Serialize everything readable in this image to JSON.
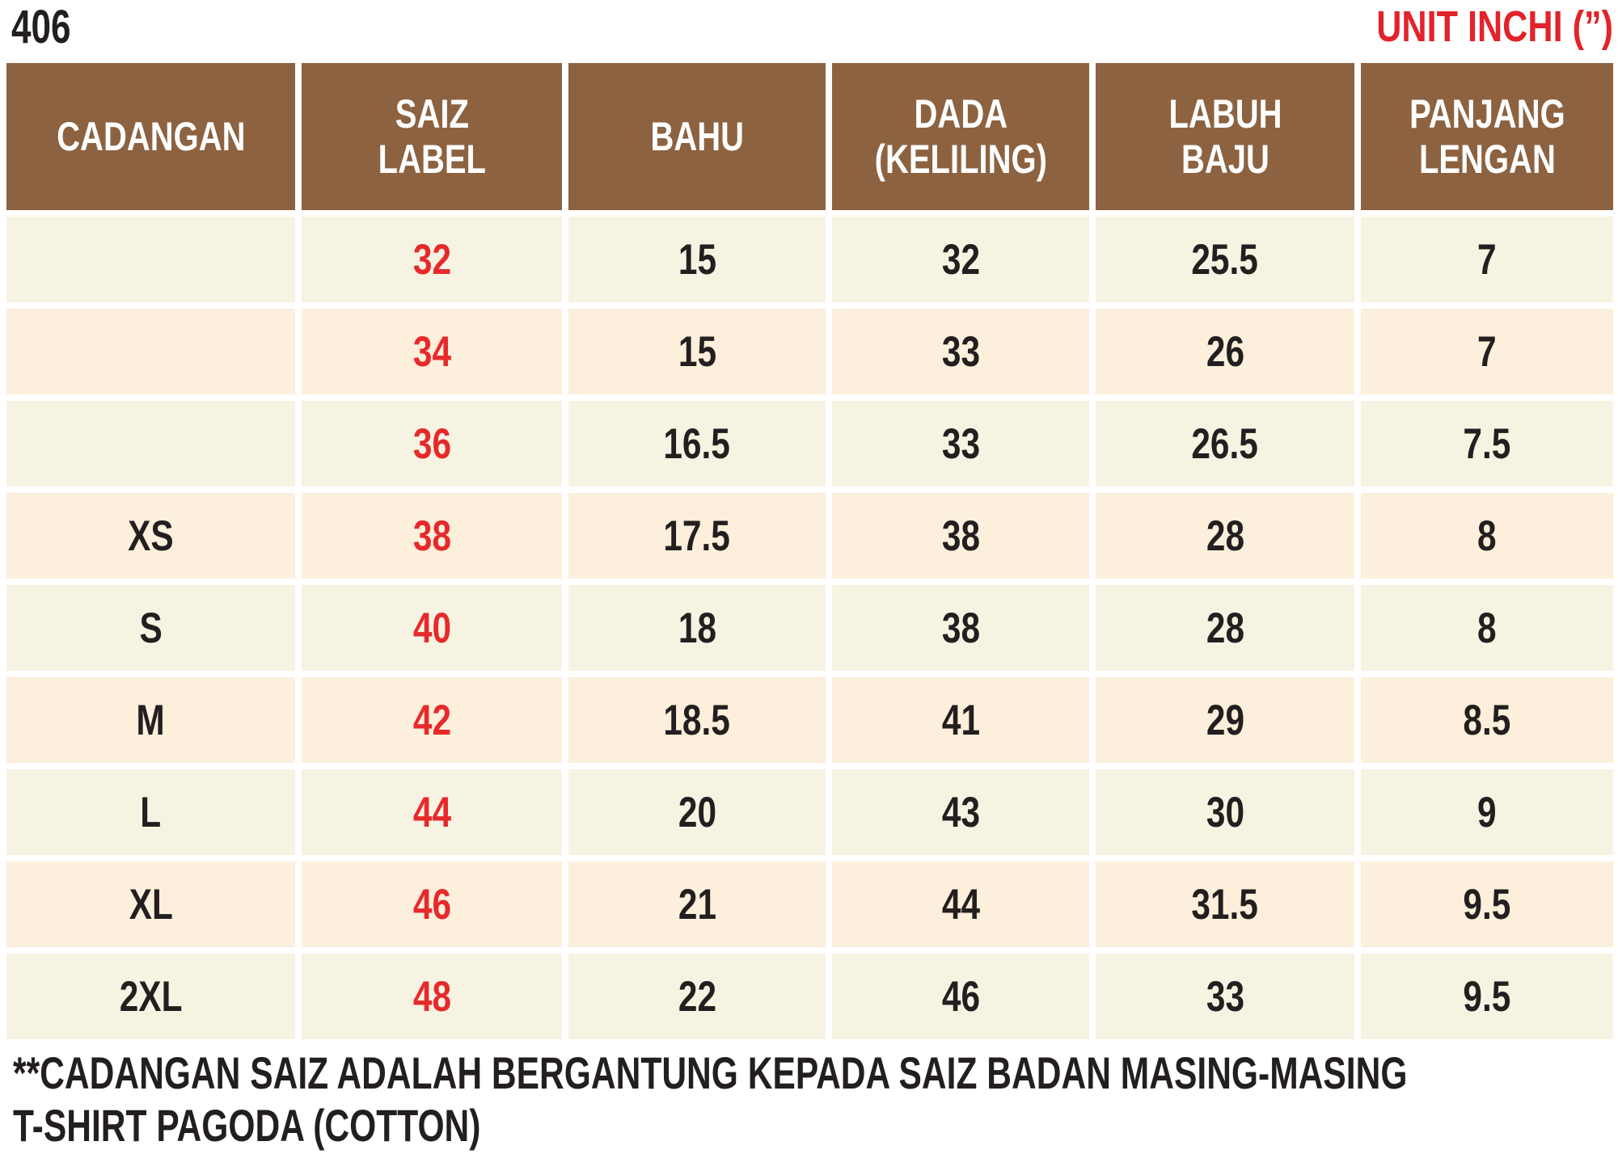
{
  "header": {
    "code": "406",
    "unit_label": "UNIT INCHI (”)"
  },
  "table": {
    "columns": [
      "CADANGAN",
      "SAIZ\nLABEL",
      "BAHU",
      "DADA\n(KELILING)",
      "LABUH\nBAJU",
      "PANJANG\nLENGAN"
    ],
    "rows": [
      [
        "",
        "32",
        "15",
        "32",
        "25.5",
        "7"
      ],
      [
        "",
        "34",
        "15",
        "33",
        "26",
        "7"
      ],
      [
        "",
        "36",
        "16.5",
        "33",
        "26.5",
        "7.5"
      ],
      [
        "XS",
        "38",
        "17.5",
        "38",
        "28",
        "8"
      ],
      [
        "S",
        "40",
        "18",
        "38",
        "28",
        "8"
      ],
      [
        "M",
        "42",
        "18.5",
        "41",
        "29",
        "8.5"
      ],
      [
        "L",
        "44",
        "20",
        "43",
        "30",
        "9"
      ],
      [
        "XL",
        "46",
        "21",
        "44",
        "31.5",
        "9.5"
      ],
      [
        "2XL",
        "48",
        "22",
        "46",
        "33",
        "9.5"
      ]
    ]
  },
  "notes": {
    "line1": "**CADANGAN SAIZ ADALAH BERGANTUNG KEPADA SAIZ BADAN MASING-MASING",
    "line2": "T-SHIRT PAGODA (COTTON)"
  },
  "colors": {
    "header_bg": "#8C6240",
    "row_cream": "#F6F3E2",
    "row_peach": "#FCEFDB",
    "accent_red": "#E7292C",
    "unit_red": "#E2232B",
    "text_black": "#231F20"
  }
}
